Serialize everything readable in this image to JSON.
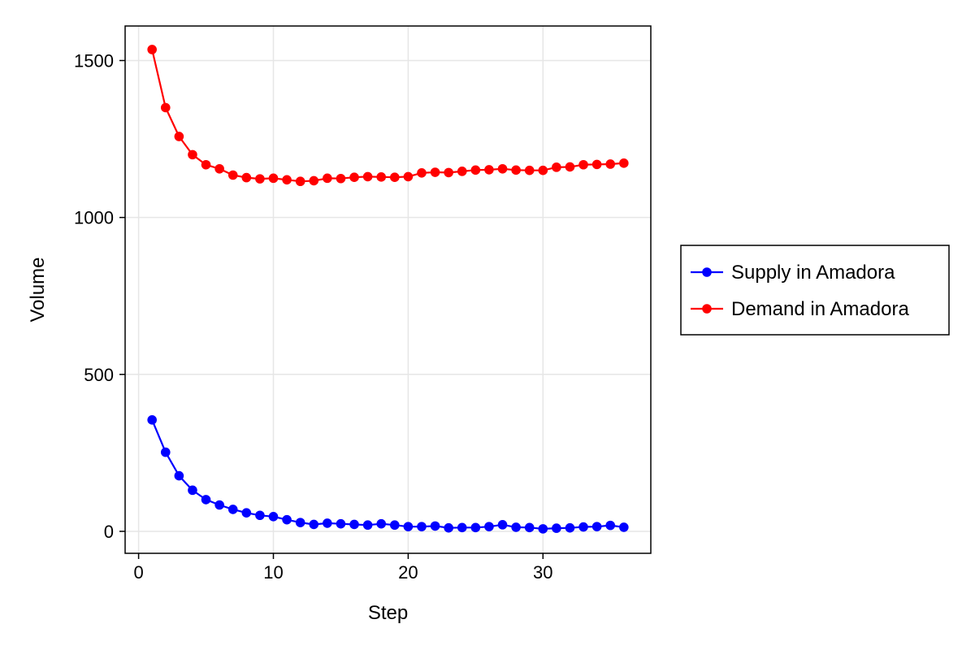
{
  "chart_data": {
    "type": "line",
    "title": "",
    "xlabel": "Step",
    "ylabel": "Volume",
    "xlim": [
      -1,
      38
    ],
    "ylim": [
      -70,
      1610
    ],
    "xticks": [
      0,
      10,
      20,
      30
    ],
    "yticks": [
      0,
      500,
      1000,
      1500
    ],
    "grid": true,
    "legend_position": "right",
    "x": [
      1,
      2,
      3,
      4,
      5,
      6,
      7,
      8,
      9,
      10,
      11,
      12,
      13,
      14,
      15,
      16,
      17,
      18,
      19,
      20,
      21,
      22,
      23,
      24,
      25,
      26,
      27,
      28,
      29,
      30,
      31,
      32,
      33,
      34,
      35,
      36
    ],
    "series": [
      {
        "name": "Supply in Amadora",
        "color": "#0000ff",
        "values": [
          355,
          252,
          177,
          131,
          101,
          84,
          70,
          59,
          51,
          47,
          37,
          28,
          22,
          26,
          24,
          22,
          20,
          24,
          20,
          15,
          15,
          17,
          11,
          12,
          12,
          15,
          21,
          13,
          12,
          8,
          10,
          11,
          14,
          15,
          19,
          13
        ]
      },
      {
        "name": "Demand in Amadora",
        "color": "#ff0000",
        "values": [
          1535,
          1350,
          1258,
          1200,
          1168,
          1155,
          1135,
          1127,
          1123,
          1125,
          1120,
          1115,
          1117,
          1125,
          1124,
          1128,
          1130,
          1129,
          1128,
          1130,
          1142,
          1144,
          1143,
          1147,
          1151,
          1152,
          1155,
          1151,
          1150,
          1150,
          1160,
          1161,
          1168,
          1169,
          1170,
          1173
        ]
      }
    ]
  }
}
